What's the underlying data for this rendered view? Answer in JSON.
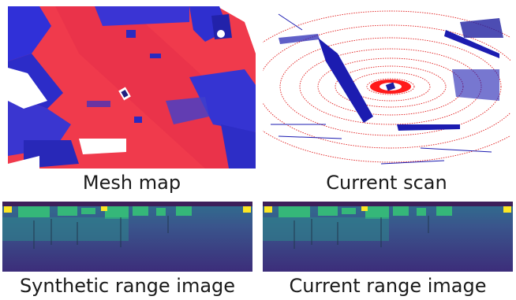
{
  "figure": {
    "panels": [
      {
        "id": "mesh_map",
        "caption": "Mesh map"
      },
      {
        "id": "current_scan",
        "caption": "Current scan"
      },
      {
        "id": "synthetic_range_image",
        "caption": "Synthetic range image"
      },
      {
        "id": "current_range_image",
        "caption": "Current range image"
      }
    ],
    "colors": {
      "mesh_red": "#f23a4a",
      "mesh_blue": "#2e2bd6",
      "scan_red": "#e01010",
      "scan_blue": "#1a1ab0",
      "range_far": "#3b2d78",
      "range_mid": "#2f6f8e",
      "range_near": "#35b779",
      "range_top": "#fde725"
    }
  }
}
